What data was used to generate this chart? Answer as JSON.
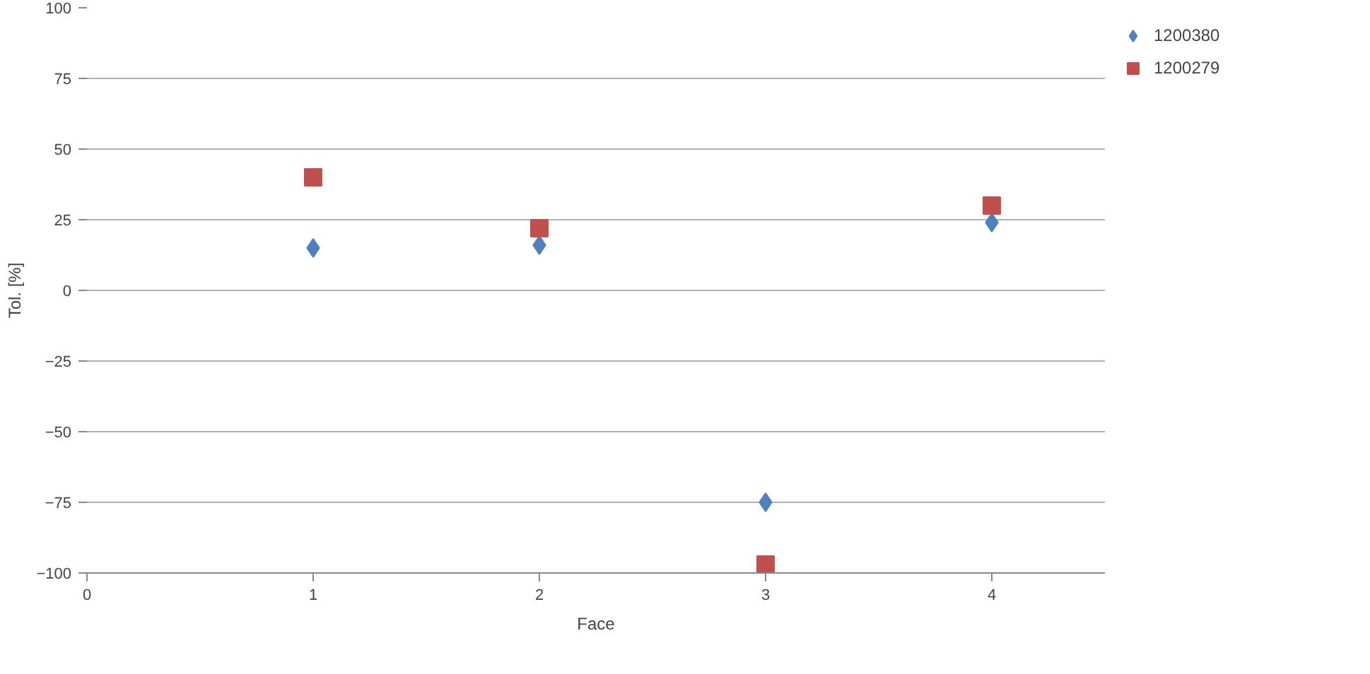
{
  "chart_data": {
    "type": "scatter",
    "xlabel": "Face",
    "ylabel": "Tol. [%]",
    "xlim": [
      0,
      4.5
    ],
    "xticks": [
      0,
      1,
      2,
      3,
      4
    ],
    "ylim": [
      -100,
      100
    ],
    "yticks": [
      -100,
      -75,
      -50,
      -25,
      0,
      25,
      50,
      75,
      100
    ],
    "grid": "y",
    "legend": "right",
    "series": [
      {
        "name": "1200380",
        "color": "#4f81bd",
        "marker": "diamond",
        "x": [
          1,
          2,
          3,
          4
        ],
        "values": [
          15,
          16,
          -75,
          24
        ]
      },
      {
        "name": "1200279",
        "color": "#c0504d",
        "marker": "square",
        "x": [
          1,
          2,
          3,
          4
        ],
        "values": [
          40,
          22,
          -97,
          30
        ]
      }
    ]
  }
}
